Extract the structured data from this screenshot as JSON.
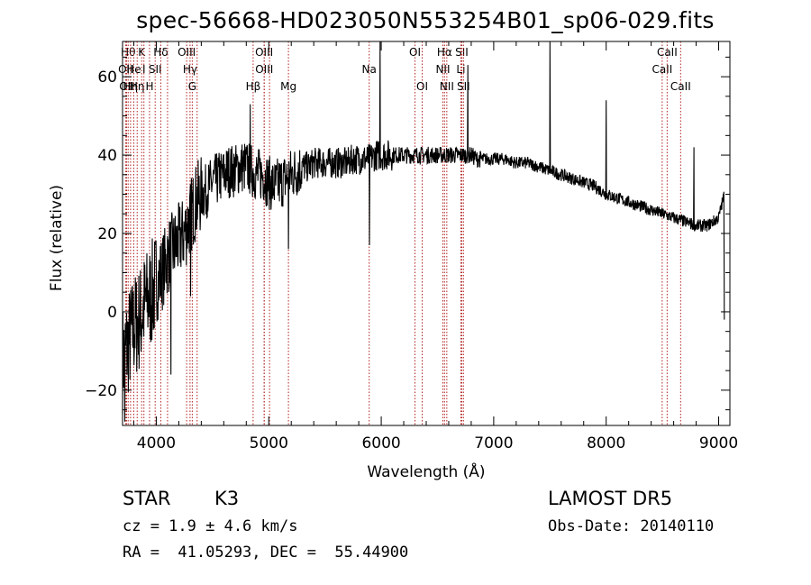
{
  "chart_data": {
    "type": "line",
    "title": "spec-56668-HD023050N553254B01_sp06-029.fits",
    "xlabel": "Wavelength (Å)",
    "ylabel": "Flux (relative)",
    "xlim": [
      3700,
      9100
    ],
    "ylim": [
      -29,
      69
    ],
    "x_ticks": [
      4000,
      5000,
      6000,
      7000,
      8000,
      9000
    ],
    "y_ticks": [
      -20,
      0,
      20,
      40,
      60
    ],
    "grid": false,
    "line_color": "#000000",
    "marker_color": "#b22222",
    "spectrum": {
      "x": [
        3700,
        3750,
        3800,
        3850,
        3900,
        3950,
        4000,
        4050,
        4100,
        4150,
        4200,
        4250,
        4300,
        4350,
        4400,
        4450,
        4500,
        4550,
        4600,
        4650,
        4700,
        4750,
        4800,
        4850,
        4900,
        4950,
        5000,
        5050,
        5100,
        5150,
        5200,
        5250,
        5300,
        5350,
        5400,
        5450,
        5500,
        5550,
        5600,
        5650,
        5700,
        5750,
        5800,
        5850,
        5900,
        5950,
        6000,
        6050,
        6100,
        6150,
        6200,
        6250,
        6300,
        6350,
        6400,
        6450,
        6500,
        6550,
        6600,
        6650,
        6700,
        6750,
        6800,
        6850,
        6900,
        6950,
        7000,
        7100,
        7200,
        7300,
        7400,
        7500,
        7600,
        7700,
        7800,
        7900,
        8000,
        8100,
        8200,
        8300,
        8400,
        8500,
        8600,
        8700,
        8800,
        8900,
        9000,
        9050
      ],
      "y": [
        -12,
        -8,
        -4,
        -2,
        2,
        4,
        7,
        10,
        14,
        16,
        18,
        20,
        24,
        28,
        30,
        31,
        33,
        34,
        35,
        36,
        36,
        37,
        37,
        36,
        35,
        35,
        33,
        32,
        33,
        34,
        35,
        36,
        37,
        37,
        38,
        38,
        38,
        38,
        38,
        38,
        38,
        39,
        39,
        39,
        39,
        40,
        40,
        40,
        40,
        40,
        40,
        40,
        40,
        40,
        40,
        40,
        40,
        40,
        40,
        40,
        40,
        40,
        40,
        39,
        39,
        39,
        39,
        39,
        38,
        38,
        37,
        36,
        35,
        34,
        33,
        32,
        30,
        29,
        28,
        27,
        26,
        25,
        24,
        23,
        22,
        22,
        24,
        30
      ]
    },
    "emission_peaks": [
      {
        "x": 5990,
        "y": 70
      },
      {
        "x": 7500,
        "y": 70
      },
      {
        "x": 8000,
        "y": 54
      },
      {
        "x": 8780,
        "y": 42
      },
      {
        "x": 6770,
        "y": 63
      },
      {
        "x": 4835,
        "y": 53
      }
    ],
    "absorption_dips": [
      {
        "x": 5895,
        "y": 17
      },
      {
        "x": 5175,
        "y": 16
      },
      {
        "x": 4305,
        "y": 4
      },
      {
        "x": 4130,
        "y": -16
      },
      {
        "x": 3720,
        "y": -28
      },
      {
        "x": 9050,
        "y": -2
      }
    ],
    "line_markers": [
      {
        "x": 3727,
        "row": 1,
        "label": "OII"
      },
      {
        "x": 3750,
        "row": 0,
        "label": "Hθ"
      },
      {
        "x": 3736,
        "row": 2,
        "label": "OII"
      },
      {
        "x": 3771,
        "row": 2,
        "label": "Hη"
      },
      {
        "x": 3800,
        "row": 1,
        "label": "He"
      },
      {
        "x": 3830,
        "row": 2,
        "label": "Hη"
      },
      {
        "x": 3870,
        "row": 0,
        "label": "K"
      },
      {
        "x": 3890,
        "row": 1,
        "label": "I"
      },
      {
        "x": 3940,
        "row": 2,
        "label": "H"
      },
      {
        "x": 3990,
        "row": 1,
        "label": "SII"
      },
      {
        "x": 4040,
        "row": 0,
        "label": "Hδ"
      },
      {
        "x": 4100,
        "row": 0,
        "label": ""
      },
      {
        "x": 4270,
        "row": 0,
        "label": "OIII"
      },
      {
        "x": 4300,
        "row": 1,
        "label": "Hγ"
      },
      {
        "x": 4320,
        "row": 2,
        "label": "G"
      },
      {
        "x": 4363,
        "row": 0,
        "label": ""
      },
      {
        "x": 4861,
        "row": 2,
        "label": "Hβ"
      },
      {
        "x": 4959,
        "row": 0,
        "label": "OIII"
      },
      {
        "x": 4960,
        "row": 1,
        "label": "OIII"
      },
      {
        "x": 5007,
        "row": 0,
        "label": ""
      },
      {
        "x": 5175,
        "row": 2,
        "label": "Mg"
      },
      {
        "x": 5893,
        "row": 1,
        "label": "Na"
      },
      {
        "x": 6300,
        "row": 0,
        "label": "OI"
      },
      {
        "x": 6364,
        "row": 2,
        "label": "OI"
      },
      {
        "x": 6548,
        "row": 1,
        "label": "NII"
      },
      {
        "x": 6563,
        "row": 0,
        "label": "Hα"
      },
      {
        "x": 6583,
        "row": 2,
        "label": "NII"
      },
      {
        "x": 6716,
        "row": 0,
        "label": "SII"
      },
      {
        "x": 6708,
        "row": 1,
        "label": "Li"
      },
      {
        "x": 6731,
        "row": 2,
        "label": "SII"
      },
      {
        "x": 8498,
        "row": 1,
        "label": "CaII"
      },
      {
        "x": 8542,
        "row": 0,
        "label": "CaII"
      },
      {
        "x": 8662,
        "row": 2,
        "label": "CaII"
      }
    ]
  },
  "info": {
    "class_left": "STAR",
    "class_right": "K3",
    "survey": "LAMOST DR5",
    "cz": "cz = 1.9 ± 4.6 km/s",
    "obs_date": "Obs-Date: 20140110",
    "radec": "RA =  41.05293, DEC =  55.44900"
  }
}
